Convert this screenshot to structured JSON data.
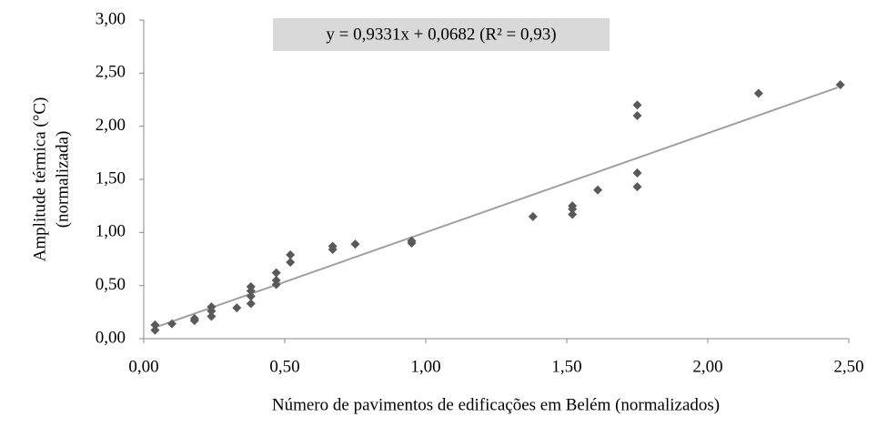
{
  "chart_data": {
    "type": "scatter",
    "annotation": "y = 0,9331x + 0,0682   (R² = 0,93)",
    "x_label": "Número de pavimentos de edificações em Belém (normalizados)",
    "y_label": [
      "Amplitude térmica (°C)",
      "(normalizada)"
    ],
    "color": "#595959",
    "trendline": {
      "slope": 0.9331,
      "intercept": 0.0682,
      "x_range": [
        0.04,
        2.46
      ],
      "color": "#a0a0a0"
    },
    "x": [
      0.04,
      0.04,
      0.1,
      0.18,
      0.18,
      0.24,
      0.24,
      0.24,
      0.33,
      0.38,
      0.38,
      0.38,
      0.38,
      0.47,
      0.47,
      0.47,
      0.52,
      0.52,
      0.67,
      0.67,
      0.75,
      0.95,
      0.95,
      1.38,
      1.52,
      1.52,
      1.52,
      1.61,
      1.75,
      1.75,
      1.75,
      1.75,
      2.18,
      2.47
    ],
    "values": [
      0.08,
      0.13,
      0.14,
      0.17,
      0.19,
      0.21,
      0.26,
      0.3,
      0.29,
      0.33,
      0.4,
      0.45,
      0.49,
      0.51,
      0.55,
      0.62,
      0.72,
      0.79,
      0.84,
      0.87,
      0.89,
      0.92,
      0.9,
      1.15,
      1.17,
      1.22,
      1.25,
      1.4,
      1.43,
      1.56,
      2.1,
      2.2,
      2.31,
      2.39
    ],
    "xlim": [
      0,
      2.5
    ],
    "xticks": [
      {
        "value": 0,
        "label": "0,00"
      },
      {
        "value": 0.5,
        "label": "0,50"
      },
      {
        "value": 1,
        "label": "1,00"
      },
      {
        "value": 1.5,
        "label": "1,50"
      },
      {
        "value": 2,
        "label": "2,00"
      },
      {
        "value": 2.5,
        "label": "2,50"
      }
    ],
    "ylim": [
      0,
      3
    ],
    "yticks": [
      {
        "value": 0,
        "label": "0,00"
      },
      {
        "value": 0.5,
        "label": "0,50"
      },
      {
        "value": 1,
        "label": "1,00"
      },
      {
        "value": 1.5,
        "label": "1,50"
      },
      {
        "value": 2,
        "label": "2,00"
      },
      {
        "value": 2.5,
        "label": "2,50"
      },
      {
        "value": 3,
        "label": "3,00"
      }
    ],
    "grid": false
  }
}
